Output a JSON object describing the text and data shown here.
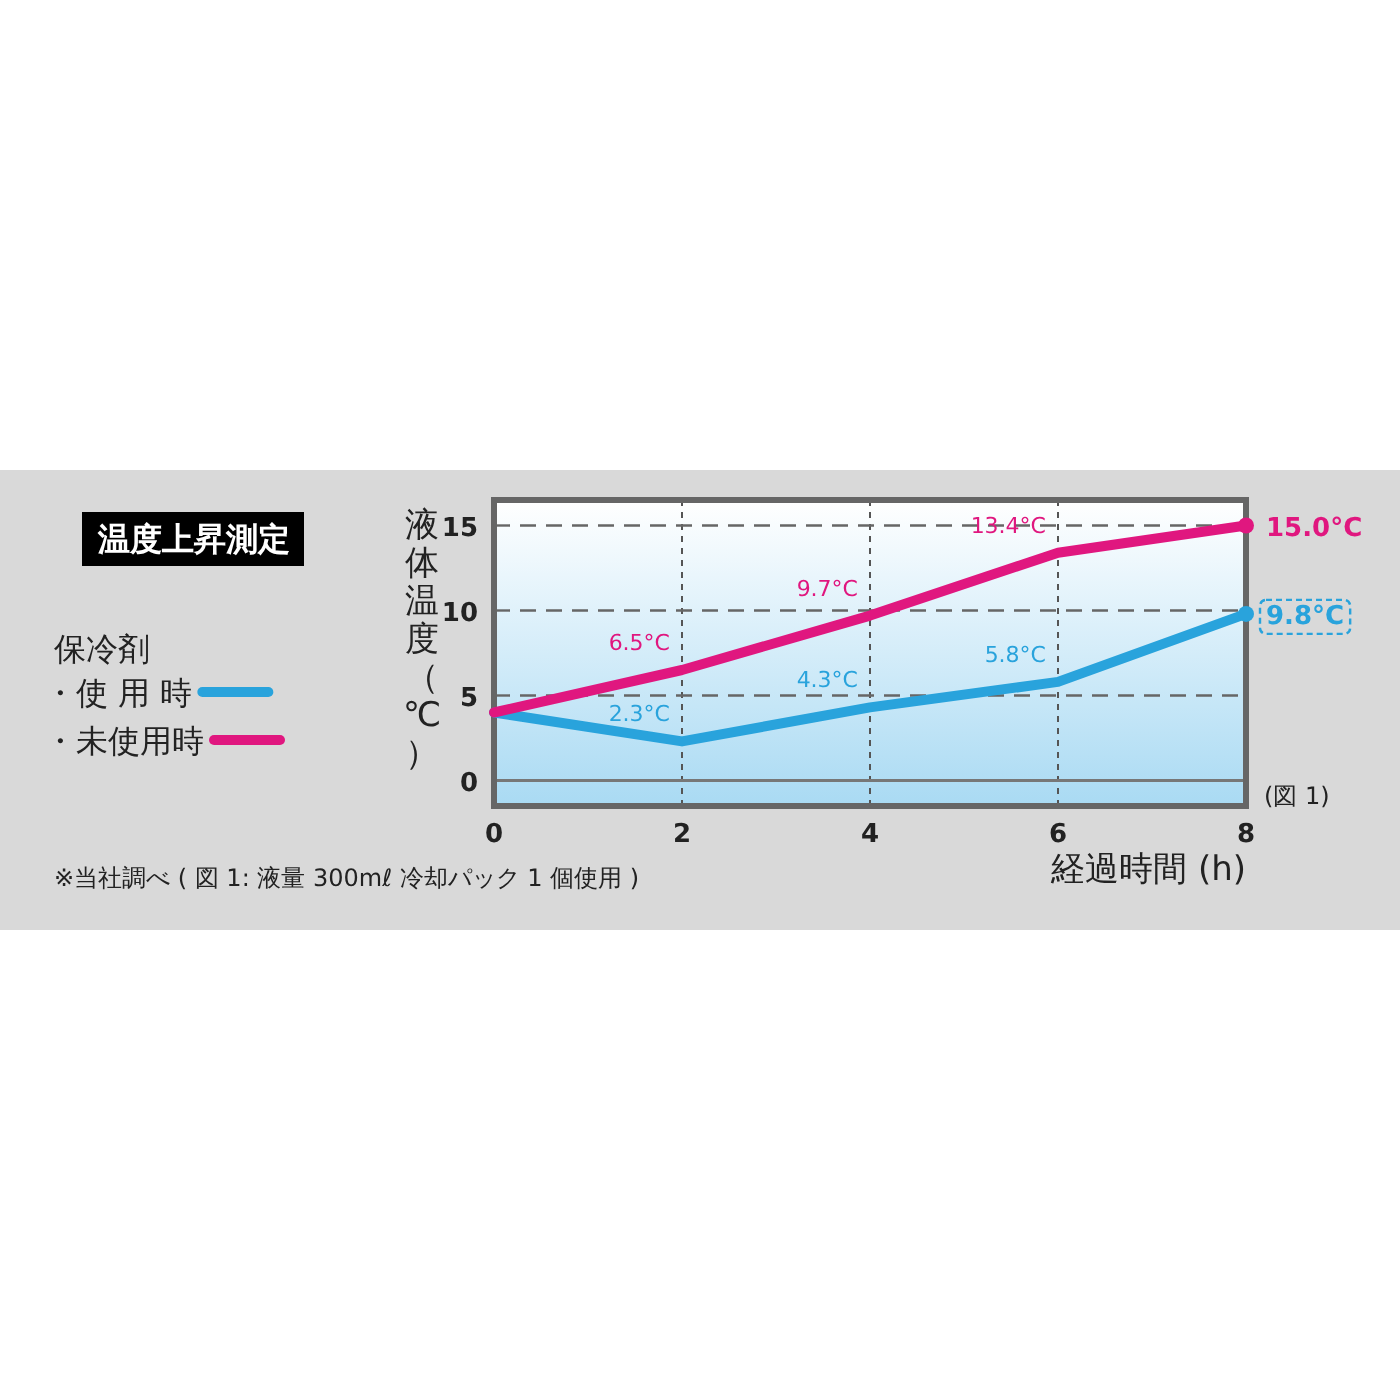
{
  "chart_data": {
    "type": "line",
    "title": "温度上昇測定",
    "xlabel": "経過時間 (h)",
    "ylabel": "液体温度（℃）",
    "legend_title": "保冷剤",
    "x": [
      0,
      2,
      4,
      6,
      8
    ],
    "series": [
      {
        "name": "・使 用 時",
        "color": "#29a3dc",
        "values": [
          4,
          2.3,
          4.3,
          5.8,
          9.8
        ],
        "value_labels": [
          null,
          "2.3°C",
          "4.3°C",
          "5.8°C",
          "9.8°C"
        ]
      },
      {
        "name": "・未使用時",
        "color": "#e0177f",
        "values": [
          4,
          6.5,
          9.7,
          13.4,
          15.0
        ],
        "value_labels": [
          null,
          "6.5°C",
          "9.7°C",
          "13.4°C",
          "15.0°C"
        ]
      }
    ],
    "xlim": [
      0,
      8
    ],
    "xticks": [
      0,
      2,
      4,
      6,
      8
    ],
    "ylim": [
      -1.5,
      16.5
    ],
    "yticks": [
      0,
      5,
      10,
      15
    ],
    "grid": true,
    "legend": "left",
    "line_style": "solid",
    "ref_lines": [
      {
        "axis": "y",
        "value": 0,
        "color": "#777777",
        "line_style": "solid"
      }
    ],
    "annotations": [
      "(図 1)",
      "※当社調べ ( 図 1: 液量 300mℓ 冷却パック 1 個使用 )"
    ]
  }
}
